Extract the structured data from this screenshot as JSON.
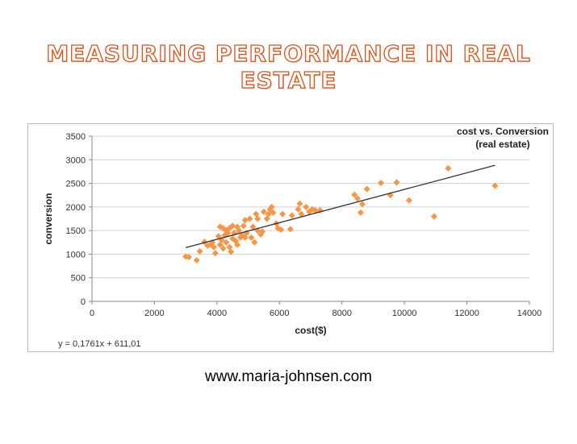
{
  "slide": {
    "title": "MEASURING PERFORMANCE IN REAL ESTATE",
    "footer": "www.maria-johnsen.com"
  },
  "chart_data": {
    "type": "scatter",
    "title_lines": [
      "cost vs. Conversion",
      "(real estate)"
    ],
    "xlabel": "cost($)",
    "ylabel": "conversion",
    "xlim": [
      0,
      14000
    ],
    "ylim": [
      0,
      3500
    ],
    "xticks": [
      "0",
      "2000",
      "4000",
      "6000",
      "8000",
      "10000",
      "12000",
      "14000"
    ],
    "yticks": [
      "0",
      "500",
      "1000",
      "1500",
      "2000",
      "2500",
      "3000",
      "3500"
    ],
    "grid": "horizontal",
    "marker_color": "#f79646",
    "trendline": {
      "equation": "y = 0,1761x + 611,01",
      "slope": 0.1761,
      "intercept": 611.01,
      "x_range": [
        3000,
        12900
      ],
      "color": "#333333"
    },
    "points": [
      [
        3000,
        950
      ],
      [
        3100,
        940
      ],
      [
        3350,
        870
      ],
      [
        3450,
        1060
      ],
      [
        3600,
        1260
      ],
      [
        3700,
        1180
      ],
      [
        3800,
        1200
      ],
      [
        3850,
        1250
      ],
      [
        3900,
        1150
      ],
      [
        3950,
        1020
      ],
      [
        4050,
        1380
      ],
      [
        4100,
        1580
      ],
      [
        4100,
        1200
      ],
      [
        4150,
        1300
      ],
      [
        4200,
        1550
      ],
      [
        4200,
        1120
      ],
      [
        4250,
        1400
      ],
      [
        4300,
        1500
      ],
      [
        4300,
        1250
      ],
      [
        4350,
        1450
      ],
      [
        4400,
        1550
      ],
      [
        4400,
        1150
      ],
      [
        4450,
        1050
      ],
      [
        4500,
        1600
      ],
      [
        4500,
        1330
      ],
      [
        4550,
        1450
      ],
      [
        4600,
        1280
      ],
      [
        4650,
        1580
      ],
      [
        4650,
        1200
      ],
      [
        4700,
        1500
      ],
      [
        4750,
        1350
      ],
      [
        4800,
        1400
      ],
      [
        4850,
        1600
      ],
      [
        4900,
        1350
      ],
      [
        4900,
        1720
      ],
      [
        4950,
        1450
      ],
      [
        5050,
        1750
      ],
      [
        5100,
        1350
      ],
      [
        5150,
        1580
      ],
      [
        5200,
        1250
      ],
      [
        5250,
        1850
      ],
      [
        5300,
        1500
      ],
      [
        5300,
        1750
      ],
      [
        5400,
        1420
      ],
      [
        5450,
        1480
      ],
      [
        5500,
        1900
      ],
      [
        5600,
        1750
      ],
      [
        5650,
        1850
      ],
      [
        5700,
        1950
      ],
      [
        5750,
        2000
      ],
      [
        5800,
        1880
      ],
      [
        5900,
        1650
      ],
      [
        5950,
        1550
      ],
      [
        6050,
        1520
      ],
      [
        6100,
        1850
      ],
      [
        6350,
        1530
      ],
      [
        6400,
        1820
      ],
      [
        6600,
        1950
      ],
      [
        6650,
        2070
      ],
      [
        6700,
        1850
      ],
      [
        6850,
        2000
      ],
      [
        6950,
        1900
      ],
      [
        7050,
        1950
      ],
      [
        7150,
        1930
      ],
      [
        7300,
        1930
      ],
      [
        8400,
        2260
      ],
      [
        8500,
        2180
      ],
      [
        8600,
        1880
      ],
      [
        8650,
        2060
      ],
      [
        8800,
        2380
      ],
      [
        9250,
        2510
      ],
      [
        9550,
        2250
      ],
      [
        9750,
        2520
      ],
      [
        10150,
        2140
      ],
      [
        10950,
        1800
      ],
      [
        11400,
        2820
      ],
      [
        12900,
        2450
      ]
    ]
  }
}
